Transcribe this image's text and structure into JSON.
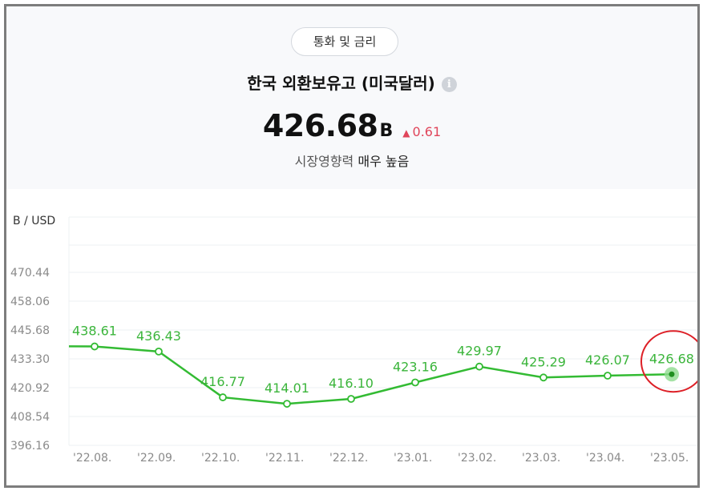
{
  "chip_label": "통화 및 금리",
  "title": "한국 외환보유고 (미국달러)",
  "info_glyph": "i",
  "value": "426.68",
  "unit": "B",
  "change_icon": "triangle-up",
  "change_glyph": "▲",
  "change": "0.61",
  "impact_label": "시장영향력",
  "impact_level": "매우 높음",
  "colors": {
    "line": "#33bb33",
    "label": "#3bb53b",
    "change": "#e0455a",
    "highlight_circle": "#dd1f26"
  },
  "chart_data": {
    "type": "line",
    "ylabel": "B / USD",
    "yticks": [
      "470.44",
      "458.06",
      "445.68",
      "433.30",
      "420.92",
      "408.54",
      "396.16"
    ],
    "ylim": [
      396.16,
      470.44
    ],
    "categories": [
      "'22.08.",
      "'22.09.",
      "'22.10.",
      "'22.11.",
      "'22.12.",
      "'23.01.",
      "'23.02.",
      "'23.03.",
      "'23.04.",
      "'23.05."
    ],
    "values": [
      438.61,
      436.43,
      416.77,
      414.01,
      416.1,
      423.16,
      429.97,
      425.29,
      426.07,
      426.68
    ],
    "data_labels": [
      "438.61",
      "436.43",
      "416.77",
      "414.01",
      "416.10",
      "423.16",
      "429.97",
      "425.29",
      "426.07",
      "426.68"
    ],
    "grid": true,
    "highlight": "last point circled in red"
  }
}
